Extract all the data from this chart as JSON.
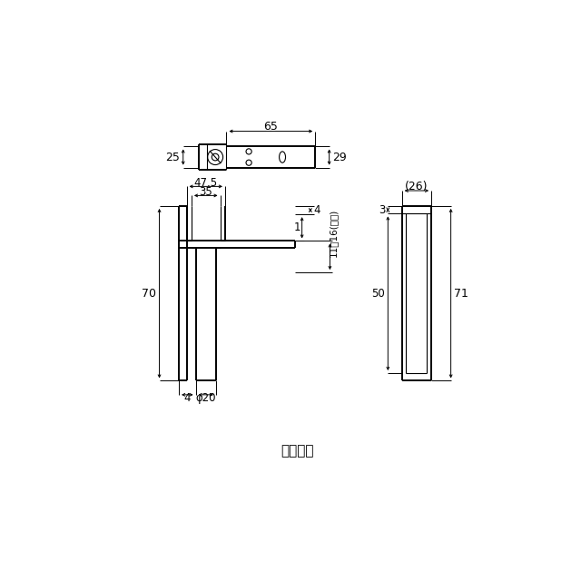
{
  "bg_color": "#ffffff",
  "line_color": "#000000",
  "fig_width": 6.4,
  "fig_height": 6.4,
  "label_top": "上部金具",
  "dim_65": "65",
  "dim_25": "25",
  "dim_29": "29",
  "dim_47_5": "47.5",
  "dim_35": "35",
  "dim_70": "70",
  "dim_4a": "4",
  "dim_phi20": "φ20",
  "dim_1": "1",
  "dim_4b": "4",
  "dim_11_16": "11～16(推奨)",
  "dim_26": "(26)",
  "dim_3": "3",
  "dim_50": "50",
  "dim_71": "71"
}
